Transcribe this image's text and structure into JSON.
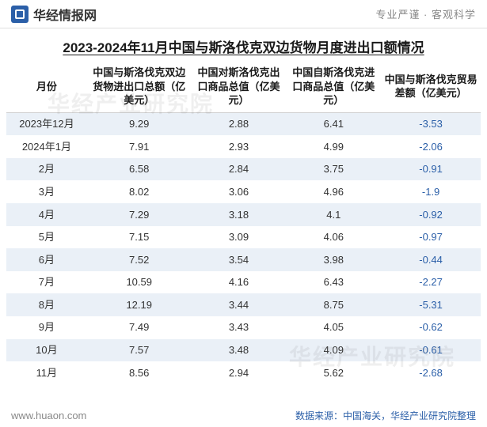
{
  "header": {
    "logo_text": "华经情报网",
    "tagline": "专业严谨 · 客观科学"
  },
  "title": "2023-2024年11月中国与斯洛伐克双边货物月度进出口额情况",
  "table": {
    "columns": [
      "月份",
      "中国与斯洛伐克双边货物进出口总额（亿美元）",
      "中国对斯洛伐克出口商品总值（亿美元）",
      "中国自斯洛伐克进口商品总值（亿美元）",
      "中国与斯洛伐克贸易差额（亿美元）"
    ],
    "rows": [
      [
        "2023年12月",
        "9.29",
        "2.88",
        "6.41",
        "-3.53"
      ],
      [
        "2024年1月",
        "7.91",
        "2.93",
        "4.99",
        "-2.06"
      ],
      [
        "2月",
        "6.58",
        "2.84",
        "3.75",
        "-0.91"
      ],
      [
        "3月",
        "8.02",
        "3.06",
        "4.96",
        "-1.9"
      ],
      [
        "4月",
        "7.29",
        "3.18",
        "4.1",
        "-0.92"
      ],
      [
        "5月",
        "7.15",
        "3.09",
        "4.06",
        "-0.97"
      ],
      [
        "6月",
        "7.52",
        "3.54",
        "3.98",
        "-0.44"
      ],
      [
        "7月",
        "10.59",
        "4.16",
        "6.43",
        "-2.27"
      ],
      [
        "8月",
        "12.19",
        "3.44",
        "8.75",
        "-5.31"
      ],
      [
        "9月",
        "7.49",
        "3.43",
        "4.05",
        "-0.62"
      ],
      [
        "10月",
        "7.57",
        "3.48",
        "4.09",
        "-0.61"
      ],
      [
        "11月",
        "8.56",
        "2.94",
        "5.62",
        "-2.68"
      ]
    ],
    "negative_color": "#2b5fa8",
    "stripe_color": "#eaf0f7"
  },
  "footer": {
    "url": "www.huaon.com",
    "source": "数据来源：中国海关，华经产业研究院整理"
  },
  "watermark": "华经产业研究院"
}
